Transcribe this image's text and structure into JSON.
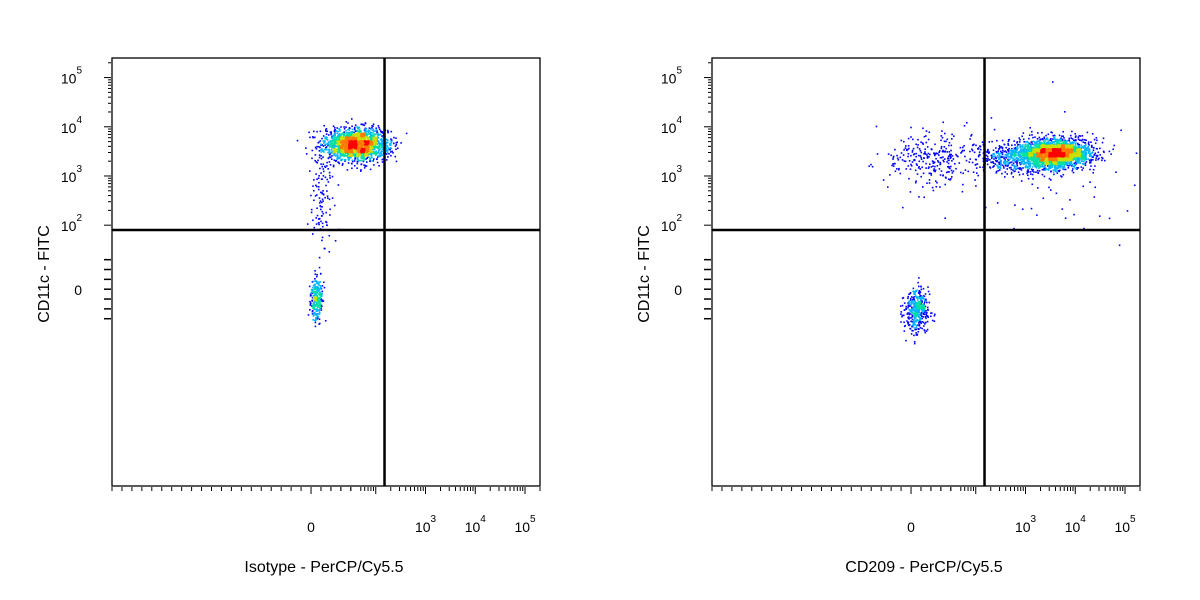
{
  "chart_data": [
    {
      "type": "scatter",
      "style": "density-pseudocolor",
      "xlabel": "Isotype - PerCP/Cy5.5",
      "ylabel": "CD11c - FITC",
      "x_scale": "biexponential",
      "y_scale": "biexponential",
      "xlim": [
        -200,
        200000
      ],
      "ylim": [
        -200,
        250000
      ],
      "x_ticks": [
        {
          "value": 0,
          "label": "0"
        },
        {
          "value": 1000,
          "label": "10",
          "exp": "3"
        },
        {
          "value": 10000,
          "label": "10",
          "exp": "4"
        },
        {
          "value": 100000,
          "label": "10",
          "exp": "5"
        }
      ],
      "y_ticks": [
        {
          "value": 0,
          "label": "0"
        },
        {
          "value": 100,
          "label": "10",
          "exp": "2"
        },
        {
          "value": 1000,
          "label": "10",
          "exp": "3"
        },
        {
          "value": 10000,
          "label": "10",
          "exp": "4"
        },
        {
          "value": 100000,
          "label": "10",
          "exp": "5"
        }
      ],
      "quadrant_gate": {
        "x": 150,
        "y": 80
      },
      "populations": [
        {
          "x": 45,
          "y": 4500,
          "sx": 0.32,
          "sy": 0.16,
          "count": 1900,
          "hot": true
        },
        {
          "x": 10,
          "y": 400,
          "sx": 0.12,
          "sy": 0.6,
          "count": 120,
          "hot": false
        },
        {
          "x": 5,
          "y": -10,
          "sx": 0.06,
          "sy": 0.22,
          "count": 260,
          "hot": false
        }
      ],
      "density_colors": [
        "#0000ff",
        "#00b4ff",
        "#00e0a0",
        "#c8e000",
        "#ff7a00",
        "#ff0000"
      ]
    },
    {
      "type": "scatter",
      "style": "density-pseudocolor",
      "xlabel": "CD209 - PerCP/Cy5.5",
      "ylabel": "CD11c - FITC",
      "x_scale": "biexponential",
      "y_scale": "biexponential",
      "xlim": [
        -200,
        200000
      ],
      "ylim": [
        -200,
        250000
      ],
      "x_ticks": [
        {
          "value": 0,
          "label": "0"
        },
        {
          "value": 1000,
          "label": "10",
          "exp": "3"
        },
        {
          "value": 10000,
          "label": "10",
          "exp": "4"
        },
        {
          "value": 100000,
          "label": "10",
          "exp": "5"
        }
      ],
      "y_ticks": [
        {
          "value": 0,
          "label": "0"
        },
        {
          "value": 100,
          "label": "10",
          "exp": "2"
        },
        {
          "value": 1000,
          "label": "10",
          "exp": "3"
        },
        {
          "value": 10000,
          "label": "10",
          "exp": "4"
        },
        {
          "value": 100000,
          "label": "10",
          "exp": "5"
        }
      ],
      "quadrant_gate": {
        "x": 150,
        "y": 80
      },
      "populations": [
        {
          "x": 4000,
          "y": 3000,
          "sx": 0.34,
          "sy": 0.14,
          "count": 2300,
          "hot": true
        },
        {
          "x": 900,
          "y": 2500,
          "sx": 0.45,
          "sy": 0.16,
          "count": 700,
          "hot": false
        },
        {
          "x": 20,
          "y": 2200,
          "sx": 0.5,
          "sy": 0.3,
          "count": 280,
          "hot": false
        },
        {
          "x": 5,
          "y": -20,
          "sx": 0.12,
          "sy": 0.22,
          "count": 420,
          "hot": false
        },
        {
          "x": 3000,
          "y": 1000,
          "sx": 1.0,
          "sy": 0.7,
          "count": 60,
          "hot": false
        }
      ],
      "density_colors": [
        "#0000ff",
        "#00b4ff",
        "#00e0a0",
        "#c8e000",
        "#ff7a00",
        "#ff0000"
      ]
    }
  ]
}
